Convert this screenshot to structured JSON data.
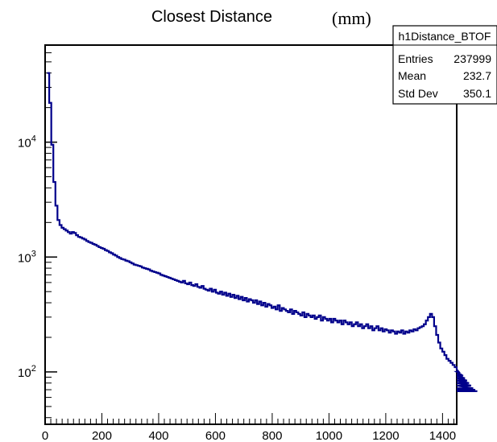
{
  "chart_data": {
    "type": "histogram",
    "title": "Closest Distance",
    "title_unit": "(mm)",
    "xlabel": "",
    "ylabel": "",
    "xlim": [
      0,
      1450
    ],
    "ylim": [
      35,
      70000
    ],
    "log_y": true,
    "x_ticks": [
      0,
      200,
      400,
      600,
      800,
      1000,
      1200,
      1400
    ],
    "y_ticks": [
      {
        "value": 100,
        "base": "10",
        "exp": "2"
      },
      {
        "value": 1000,
        "base": "10",
        "exp": "3"
      },
      {
        "value": 10000,
        "base": "10",
        "exp": "4"
      }
    ],
    "line_color": "#00008b",
    "grid": false,
    "legend": "top-right stats box",
    "series": [
      {
        "bin_width": 7.25,
        "x_start": 7.25,
        "values": [
          40000,
          22000,
          9500,
          4500,
          2800,
          2100,
          1900,
          1800,
          1750,
          1700,
          1650,
          1600,
          1650,
          1620,
          1550,
          1500,
          1480,
          1450,
          1420,
          1380,
          1350,
          1330,
          1300,
          1280,
          1250,
          1220,
          1200,
          1180,
          1150,
          1130,
          1100,
          1080,
          1050,
          1030,
          1000,
          980,
          960,
          950,
          930,
          920,
          900,
          880,
          860,
          850,
          840,
          830,
          810,
          800,
          790,
          780,
          760,
          750,
          740,
          730,
          720,
          700,
          690,
          680,
          670,
          660,
          650,
          640,
          630,
          620,
          610,
          600,
          620,
          590,
          580,
          600,
          570,
          560,
          580,
          550,
          540,
          560,
          530,
          520,
          510,
          530,
          500,
          520,
          490,
          480,
          500,
          470,
          490,
          460,
          480,
          450,
          470,
          440,
          460,
          430,
          450,
          420,
          440,
          410,
          430,
          420,
          400,
          420,
          390,
          410,
          380,
          400,
          370,
          390,
          380,
          360,
          370,
          350,
          380,
          340,
          360,
          350,
          340,
          330,
          350,
          320,
          340,
          330,
          320,
          310,
          330,
          300,
          320,
          310,
          300,
          310,
          290,
          300,
          310,
          280,
          300,
          290,
          280,
          290,
          270,
          290,
          280,
          270,
          280,
          260,
          280,
          270,
          260,
          270,
          250,
          260,
          270,
          250,
          260,
          240,
          250,
          260,
          240,
          250,
          230,
          240,
          250,
          230,
          240,
          225,
          235,
          230,
          220,
          230,
          225,
          215,
          225,
          220,
          230,
          215,
          225,
          220,
          230,
          225,
          235,
          230,
          240,
          245,
          250,
          260,
          280,
          300,
          320,
          300,
          250,
          210,
          180,
          160,
          150,
          140,
          130,
          125,
          120,
          115,
          110,
          105,
          100,
          95,
          92,
          88,
          84,
          80,
          76,
          72,
          70,
          68
        ]
      }
    ],
    "stats": {
      "name": "h1Distance_BTOF",
      "rows": [
        {
          "label": "Entries",
          "value": "237999"
        },
        {
          "label": "Mean",
          "value": "232.7"
        },
        {
          "label": "Std Dev",
          "value": "350.1"
        }
      ]
    }
  }
}
